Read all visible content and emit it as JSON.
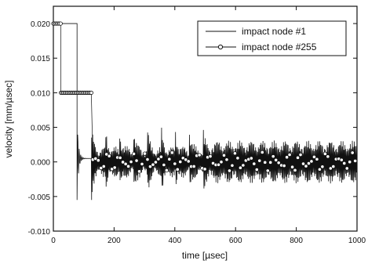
{
  "chart_data": {
    "type": "line",
    "title": "",
    "xlabel": "time [µsec]",
    "ylabel": "velocity [mm/µsec]",
    "xlim": [
      0,
      1000
    ],
    "ylim": [
      -0.01,
      0.0225
    ],
    "xticks": [
      "0",
      "200",
      "400",
      "600",
      "800",
      "1000"
    ],
    "yticks": [
      "-0.010",
      "-0.005",
      "0.000",
      "0.005",
      "0.010",
      "0.015",
      "0.020"
    ],
    "grid": false,
    "legend_position": "top-right",
    "series": [
      {
        "name": "impact node #1",
        "marker": "none",
        "color": "#111111",
        "x": [
          0,
          78,
          78,
          125,
          128,
          1000
        ],
        "y": [
          0.02,
          0.02,
          -0.0055,
          0.0005,
          -0.0055,
          0.0
        ],
        "description_points": {
          "plateau": [
            [
              0,
              0.02
            ],
            [
              78,
              0.02
            ]
          ],
          "drop_spike_min": [
            [
              78,
              -0.0055
            ],
            [
              128,
              -0.0055
            ]
          ],
          "oscillation_band": [
            -0.0025,
            0.0025
          ]
        }
      },
      {
        "name": "impact node #255",
        "marker": "circle-open",
        "color": "#111111",
        "x": [
          0,
          25,
          25,
          125,
          130,
          1000
        ],
        "y": [
          0.02,
          0.02,
          0.01,
          0.01,
          0.001,
          0.0
        ],
        "description_points": {
          "oscillation_band": [
            -0.0012,
            0.0012
          ]
        }
      }
    ]
  }
}
